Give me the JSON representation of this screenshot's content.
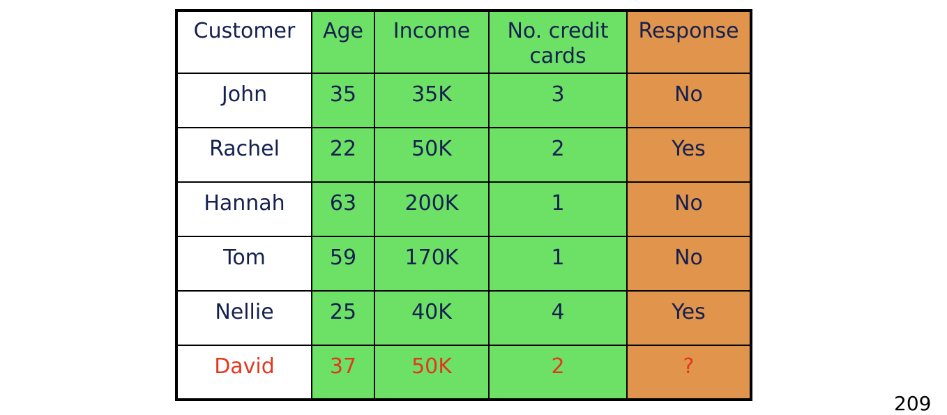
{
  "table": {
    "headers": [
      "Customer",
      "Age",
      "Income",
      "No. credit cards",
      "Response"
    ],
    "rows": [
      [
        "John",
        "35",
        "35K",
        "3",
        "No"
      ],
      [
        "Rachel",
        "22",
        "50K",
        "2",
        "Yes"
      ],
      [
        "Hannah",
        "63",
        "200K",
        "1",
        "No"
      ],
      [
        "Tom",
        "59",
        "170K",
        "1",
        "No"
      ],
      [
        "Nellie",
        "25",
        "40K",
        "4",
        "Yes"
      ],
      [
        "David",
        "37",
        "50K",
        "2",
        "?"
      ]
    ]
  },
  "colors": {
    "feature_columns": "#6de166",
    "response_column": "#e0944c",
    "text": "#15204f",
    "query_row_text": "#e3381e"
  },
  "page_number": "209"
}
